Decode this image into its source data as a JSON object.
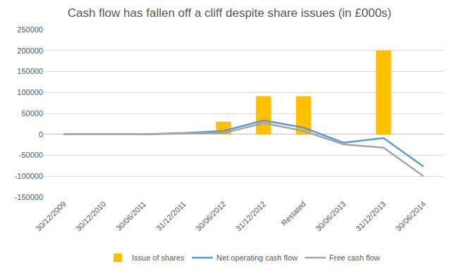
{
  "chart_data": {
    "type": "bar",
    "title": "Cash flow has fallen off a cliff despite share issues (in £000s)",
    "categories": [
      "30/12/2009",
      "30/12/2010",
      "30/06/2011",
      "31/12/2011",
      "30/06/2012",
      "31/12/2012",
      "Restated",
      "30/06/2013",
      "31/12/2013",
      "30/06/2014"
    ],
    "series": [
      {
        "name": "Issue of shares",
        "type": "bar",
        "color": "#ffc000",
        "values": [
          0,
          0,
          0,
          0,
          30000,
          91000,
          91000,
          0,
          200000,
          0
        ]
      },
      {
        "name": "Net operating cash flow",
        "type": "line",
        "color": "#5b9bd5",
        "values": [
          0,
          0,
          0,
          3000,
          8000,
          33000,
          16000,
          -20000,
          -9000,
          -77000
        ]
      },
      {
        "name": "Free cash flow",
        "type": "line",
        "color": "#a5a5a5",
        "values": [
          0,
          0,
          0,
          2000,
          3000,
          27000,
          8000,
          -24000,
          -32000,
          -100000
        ]
      }
    ],
    "ylim": [
      -150000,
      250000
    ],
    "yticks": [
      -150000,
      -100000,
      -50000,
      0,
      50000,
      100000,
      150000,
      200000,
      250000
    ],
    "grid": true,
    "legend": "bottom"
  }
}
